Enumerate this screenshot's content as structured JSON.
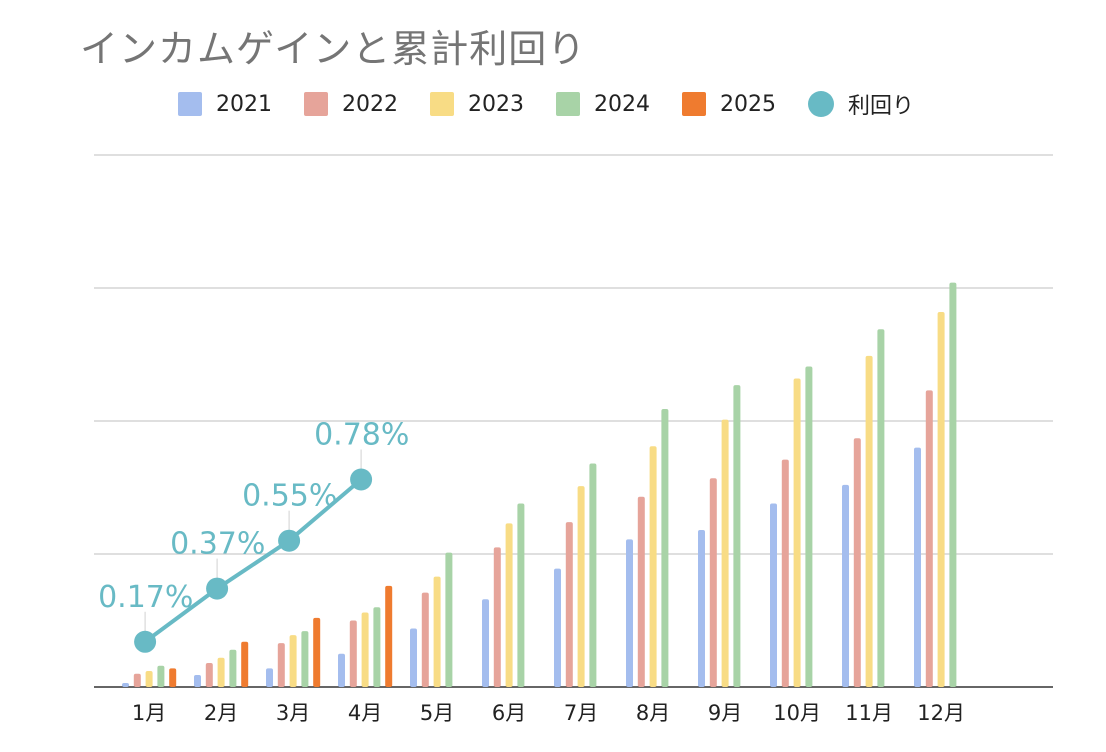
{
  "chart_data": {
    "type": "bar",
    "title": "インカムゲインと累計利回り",
    "categories": [
      "1月",
      "2月",
      "3月",
      "4月",
      "5月",
      "6月",
      "7月",
      "8月",
      "9月",
      "10月",
      "11月",
      "12月"
    ],
    "series": [
      {
        "name": "2021",
        "color": "#a4bdee",
        "values": [
          1.5,
          4.5,
          7.0,
          12.5,
          22.0,
          33.0,
          44.5,
          55.5,
          59.0,
          69.0,
          76.0,
          90.0
        ]
      },
      {
        "name": "2022",
        "color": "#e6a49a",
        "values": [
          5.0,
          9.0,
          16.5,
          25.0,
          35.5,
          52.5,
          62.0,
          71.5,
          78.5,
          85.5,
          93.5,
          111.5
        ]
      },
      {
        "name": "2023",
        "color": "#f8dc85",
        "values": [
          6.0,
          11.0,
          19.5,
          28.0,
          41.5,
          61.5,
          75.5,
          90.5,
          100.5,
          116.0,
          124.5,
          141.0
        ]
      },
      {
        "name": "2024",
        "color": "#a8d3a7",
        "values": [
          8.0,
          14.0,
          21.0,
          30.0,
          50.5,
          69.0,
          84.0,
          104.5,
          113.5,
          120.5,
          134.5,
          152.0
        ]
      },
      {
        "name": "2025",
        "color": "#ef7b2f",
        "values": [
          7.0,
          17.0,
          26.0,
          38.0,
          null,
          null,
          null,
          null,
          null,
          null,
          null,
          null
        ]
      }
    ],
    "line_series": {
      "name": "利回り",
      "color": "#68bac5",
      "values": [
        0.17,
        0.37,
        0.55,
        0.78
      ],
      "labels": [
        "0.17%",
        "0.37%",
        "0.55%",
        "0.78%"
      ]
    },
    "ylim": [
      0,
      200
    ],
    "y2lim": [
      0,
      2.0
    ],
    "y_gridlines": [
      0,
      50,
      100,
      150,
      200
    ],
    "legend": "top",
    "grid": true
  }
}
